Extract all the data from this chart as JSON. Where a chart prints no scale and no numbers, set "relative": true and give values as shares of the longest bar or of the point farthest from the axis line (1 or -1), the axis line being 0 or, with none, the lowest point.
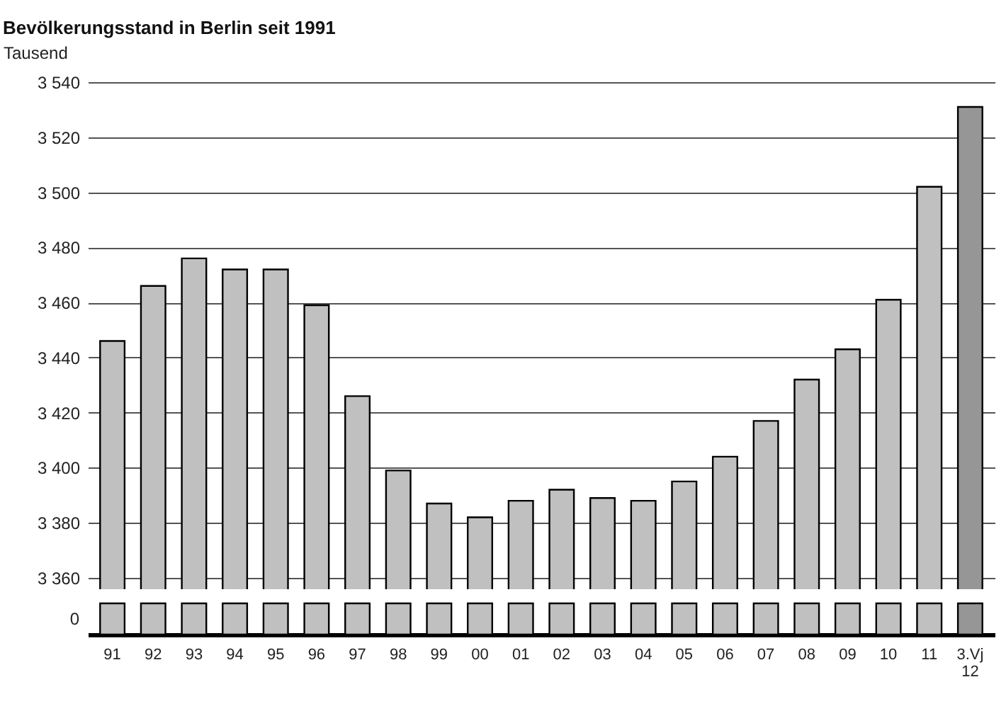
{
  "chart_data": [
    {
      "type": "bar",
      "title": "Bevölkerungsstand in Berlin seit 1991",
      "ylabel": "Tausend",
      "categories": [
        null,
        null,
        null,
        null,
        null,
        null,
        null,
        null,
        null,
        null,
        null,
        null,
        null,
        null,
        null,
        null,
        null,
        null,
        null,
        null,
        null,
        null
      ],
      "values": [
        3446,
        3466,
        3476,
        3472,
        3472,
        3459,
        3426,
        3399,
        3387,
        3382,
        3388,
        3392,
        3389,
        3388,
        3395,
        3404,
        3417,
        3432,
        3443,
        3461,
        3502,
        3531
      ],
      "colors": [
        "#c0c0c0",
        "#c0c0c0",
        "#c0c0c0",
        "#c0c0c0",
        "#c0c0c0",
        "#c0c0c0",
        "#c0c0c0",
        "#c0c0c0",
        "#c0c0c0",
        "#c0c0c0",
        "#c0c0c0",
        "#c0c0c0",
        "#c0c0c0",
        "#c0c0c0",
        "#c0c0c0",
        "#c0c0c0",
        "#c0c0c0",
        "#c0c0c0",
        "#c0c0c0",
        "#c0c0c0",
        "#c0c0c0",
        "#969696"
      ],
      "ylim": [
        3360,
        3540
      ],
      "yticks": [
        {
          "value": 3360,
          "label": "3 360"
        },
        {
          "value": 3380,
          "label": "3 380"
        },
        {
          "value": 3400,
          "label": "3 400"
        },
        {
          "value": 3420,
          "label": "3 420"
        },
        {
          "value": 3440,
          "label": "3 440"
        },
        {
          "value": 3460,
          "label": "3 460"
        },
        {
          "value": 3480,
          "label": "3 480"
        },
        {
          "value": 3500,
          "label": "3 500"
        },
        {
          "value": 3520,
          "label": "3 520"
        },
        {
          "value": 3540,
          "label": "3 540"
        }
      ],
      "grid": "y",
      "tick_labels": "y"
    },
    {
      "type": "bar",
      "categories": [
        "91",
        "92",
        "93",
        "94",
        "95",
        "96",
        "97",
        "98",
        "99",
        "00",
        "01",
        "02",
        "03",
        "04",
        "05",
        "06",
        "07",
        "08",
        "09",
        "10",
        "11",
        "3.Vj 12"
      ],
      "values": [
        1,
        1,
        1,
        1,
        1,
        1,
        1,
        1,
        1,
        1,
        1,
        1,
        1,
        1,
        1,
        1,
        1,
        1,
        1,
        1,
        1,
        1
      ],
      "colors": [
        "#c0c0c0",
        "#c0c0c0",
        "#c0c0c0",
        "#c0c0c0",
        "#c0c0c0",
        "#c0c0c0",
        "#c0c0c0",
        "#c0c0c0",
        "#c0c0c0",
        "#c0c0c0",
        "#c0c0c0",
        "#c0c0c0",
        "#c0c0c0",
        "#c0c0c0",
        "#c0c0c0",
        "#c0c0c0",
        "#c0c0c0",
        "#c0c0c0",
        "#c0c0c0",
        "#c0c0c0",
        "#c0c0c0",
        "#969696"
      ],
      "relative": true,
      "annotations": [
        "0"
      ]
    }
  ]
}
